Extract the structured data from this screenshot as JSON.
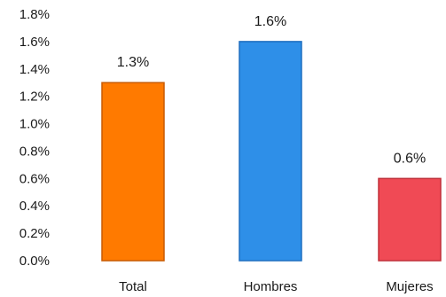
{
  "chart_data": {
    "type": "bar",
    "categories": [
      "Total",
      "Hombres",
      "Mujeres"
    ],
    "values": [
      1.3,
      1.6,
      0.6
    ],
    "data_labels": [
      "1.3%",
      "1.6%",
      "0.6%"
    ],
    "colors": [
      "#FF7A00",
      "#2E8FE8",
      "#F04A55"
    ],
    "border_colors": [
      "#C85A00",
      "#1F6FC0",
      "#C0303A"
    ],
    "ylim": [
      0,
      1.8
    ],
    "y_ticks": [
      0,
      0.2,
      0.4,
      0.6,
      0.8,
      1.0,
      1.2,
      1.4,
      1.6,
      1.8
    ],
    "y_tick_labels": [
      "0.0%",
      "0.2%",
      "0.4%",
      "0.6%",
      "0.8%",
      "1.0%",
      "1.2%",
      "1.4%",
      "1.6%",
      "1.8%"
    ],
    "title": "",
    "xlabel": "",
    "ylabel": "",
    "grid": false,
    "legend": "none"
  }
}
